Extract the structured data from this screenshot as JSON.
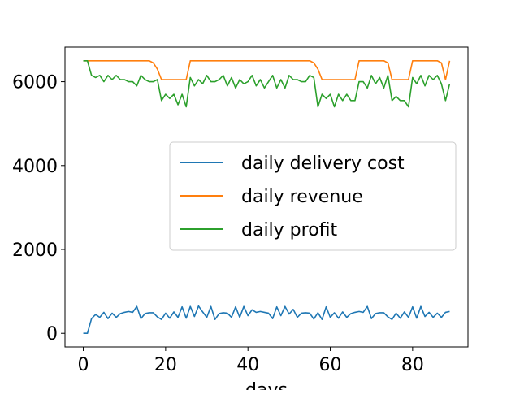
{
  "chart_data": {
    "type": "line",
    "title": "",
    "xlabel": "days",
    "ylabel": "",
    "xlim": [
      -4.45,
      93.45
    ],
    "ylim": [
      -325,
      6825
    ],
    "x_ticks": [
      0,
      20,
      40,
      60,
      80
    ],
    "y_ticks": [
      0,
      2000,
      4000,
      6000
    ],
    "x_tick_labels": [
      "0",
      "20",
      "40",
      "60",
      "80"
    ],
    "y_tick_labels": [
      "0",
      "2000",
      "4000",
      "6000"
    ],
    "grid": false,
    "legend_position": "center-right",
    "x": [
      0,
      1,
      2,
      3,
      4,
      5,
      6,
      7,
      8,
      9,
      10,
      11,
      12,
      13,
      14,
      15,
      16,
      17,
      18,
      19,
      20,
      21,
      22,
      23,
      24,
      25,
      26,
      27,
      28,
      29,
      30,
      31,
      32,
      33,
      34,
      35,
      36,
      37,
      38,
      39,
      40,
      41,
      42,
      43,
      44,
      45,
      46,
      47,
      48,
      49,
      50,
      51,
      52,
      53,
      54,
      55,
      56,
      57,
      58,
      59,
      60,
      61,
      62,
      63,
      64,
      65,
      66,
      67,
      68,
      69,
      70,
      71,
      72,
      73,
      74,
      75,
      76,
      77,
      78,
      79,
      80,
      81,
      82,
      83,
      84,
      85,
      86,
      87,
      88,
      89
    ],
    "series": [
      {
        "name": "daily delivery cost",
        "color": "#1f77b4",
        "values": [
          0,
          0,
          350,
          450,
          380,
          500,
          350,
          480,
          380,
          470,
          500,
          520,
          500,
          640,
          350,
          470,
          490,
          490,
          390,
          330,
          480,
          360,
          510,
          380,
          630,
          360,
          640,
          400,
          650,
          510,
          380,
          640,
          330,
          470,
          490,
          480,
          380,
          630,
          380,
          640,
          420,
          560,
          500,
          520,
          500,
          480,
          350,
          630,
          420,
          640,
          460,
          570,
          380,
          480,
          490,
          480,
          340,
          490,
          330,
          630,
          380,
          490,
          360,
          510,
          380,
          470,
          500,
          520,
          500,
          640,
          350,
          470,
          490,
          490,
          390,
          330,
          480,
          360,
          510,
          380,
          630,
          360,
          640,
          400,
          500,
          380,
          480,
          380,
          500,
          520
        ]
      },
      {
        "name": "daily revenue",
        "color": "#ff7f0e",
        "values": [
          6500,
          6500,
          6500,
          6500,
          6500,
          6500,
          6500,
          6500,
          6500,
          6500,
          6500,
          6500,
          6500,
          6500,
          6500,
          6500,
          6500,
          6450,
          6300,
          6050,
          6050,
          6050,
          6050,
          6050,
          6050,
          6050,
          6500,
          6500,
          6500,
          6500,
          6500,
          6500,
          6500,
          6500,
          6500,
          6500,
          6500,
          6500,
          6500,
          6500,
          6500,
          6500,
          6500,
          6500,
          6500,
          6500,
          6500,
          6500,
          6500,
          6500,
          6500,
          6500,
          6500,
          6500,
          6500,
          6500,
          6450,
          6300,
          6050,
          6050,
          6050,
          6050,
          6050,
          6050,
          6050,
          6050,
          6050,
          6500,
          6500,
          6500,
          6500,
          6500,
          6500,
          6500,
          6450,
          6050,
          6050,
          6050,
          6050,
          6050,
          6500,
          6500,
          6500,
          6500,
          6500,
          6500,
          6500,
          6450,
          6050,
          6500
        ]
      },
      {
        "name": "daily profit",
        "color": "#2ca02c",
        "values": [
          6500,
          6500,
          6150,
          6100,
          6150,
          6000,
          6150,
          6050,
          6150,
          6050,
          6050,
          6000,
          6000,
          5900,
          6150,
          6050,
          6000,
          6000,
          6050,
          5550,
          5700,
          5600,
          5700,
          5450,
          5700,
          5400,
          6100,
          5900,
          6050,
          5950,
          6150,
          6000,
          6000,
          6050,
          6150,
          5900,
          6100,
          5850,
          6050,
          5950,
          6000,
          6150,
          5900,
          6050,
          5850,
          6000,
          6150,
          5850,
          6050,
          5850,
          6150,
          6050,
          6050,
          6000,
          6000,
          6150,
          6100,
          5400,
          5700,
          5600,
          5700,
          5400,
          5700,
          5550,
          5700,
          5550,
          5550,
          6000,
          6000,
          5850,
          6150,
          5950,
          6100,
          5850,
          6150,
          5550,
          5650,
          5550,
          5550,
          5400,
          6100,
          5950,
          6150,
          5900,
          6150,
          6050,
          6150,
          5950,
          5550,
          5950
        ]
      }
    ]
  }
}
